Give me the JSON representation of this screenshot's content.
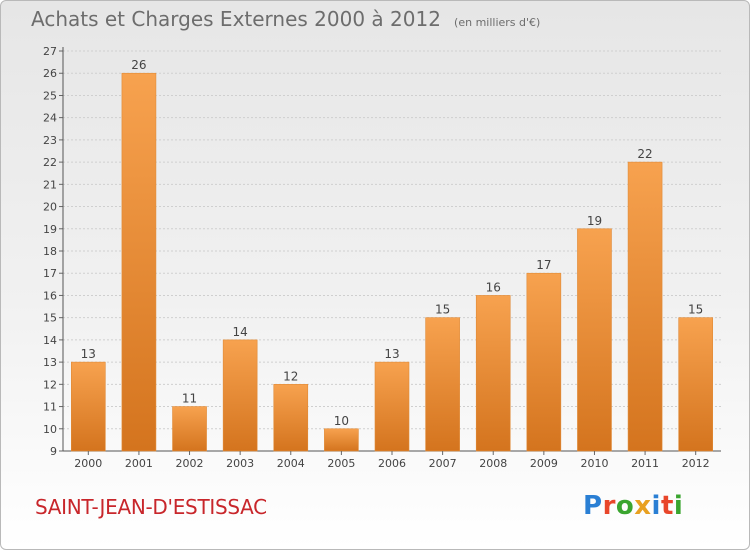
{
  "header": {
    "title": "Achats et Charges Externes 2000 à 2012",
    "subtitle": "(en milliers d'€)"
  },
  "footer": {
    "city": "SAINT-JEAN-D'ESTISSAC",
    "logo_letters": [
      {
        "char": "P",
        "color": "#2a7fd4"
      },
      {
        "char": "r",
        "color": "#e8462a"
      },
      {
        "char": "o",
        "color": "#3aa52f"
      },
      {
        "char": "x",
        "color": "#e8a020"
      },
      {
        "char": "i",
        "color": "#2a7fd4"
      },
      {
        "char": "t",
        "color": "#e8462a"
      },
      {
        "char": "i",
        "color": "#3aa52f"
      }
    ]
  },
  "chart_data": {
    "type": "bar",
    "categories": [
      "2000",
      "2001",
      "2002",
      "2003",
      "2004",
      "2005",
      "2006",
      "2007",
      "2008",
      "2009",
      "2010",
      "2011",
      "2012"
    ],
    "values": [
      13,
      26,
      11,
      14,
      12,
      10,
      13,
      15,
      16,
      17,
      19,
      22,
      15
    ],
    "ylim": [
      9,
      27
    ],
    "yticks": [
      9,
      10,
      11,
      12,
      13,
      14,
      15,
      16,
      17,
      18,
      19,
      20,
      21,
      22,
      23,
      24,
      25,
      26,
      27
    ],
    "grid": true,
    "bar_color_top": "#f7a24f",
    "bar_color_bottom": "#d4741e",
    "legend": "none"
  }
}
